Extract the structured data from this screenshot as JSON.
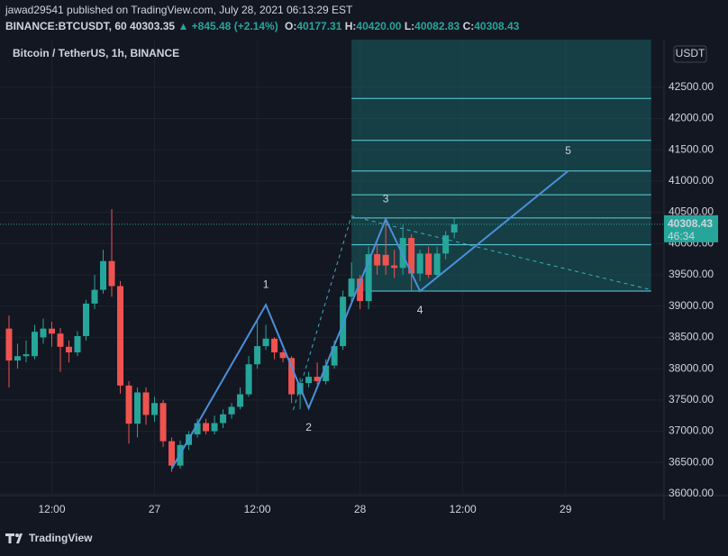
{
  "header": {
    "publisher": "jawad29541 published on TradingView.com, July 28, 2021 06:13:29 EST",
    "symbol": "BINANCE:BTCUSDT, 60",
    "price": "40303.35",
    "change": "▲ +845.48 (+2.14%)",
    "ohlc": [
      [
        "O:",
        "40177.31"
      ],
      [
        "H:",
        "40420.00"
      ],
      [
        "L:",
        "40082.83"
      ],
      [
        "C:",
        "40308.43"
      ]
    ]
  },
  "chart_data": {
    "type": "candlestick",
    "title": "Bitcoin / TetherUS, 1h, BINANCE",
    "currency": "USDT",
    "categories": [
      null,
      null,
      null,
      null,
      null,
      null,
      null,
      null,
      null,
      null,
      null,
      null,
      null,
      null,
      null,
      null,
      null,
      null,
      null,
      null,
      null,
      null,
      null,
      null,
      null,
      null,
      null,
      null,
      null,
      null,
      null,
      null,
      null,
      null,
      null,
      null,
      null,
      null,
      null,
      null,
      null,
      null,
      null,
      null,
      null,
      null,
      null,
      null,
      null,
      null,
      null,
      null,
      null
    ],
    "candles": [
      [
        38640,
        38850,
        37700,
        38130
      ],
      [
        38130,
        38400,
        38000,
        38200
      ],
      [
        38200,
        38450,
        38100,
        38230
      ],
      [
        38200,
        38700,
        38150,
        38590
      ],
      [
        38500,
        38800,
        38400,
        38640
      ],
      [
        38640,
        38750,
        38350,
        38560
      ],
      [
        38560,
        38650,
        37950,
        38350
      ],
      [
        38350,
        38450,
        38100,
        38260
      ],
      [
        38260,
        38600,
        38200,
        38520
      ],
      [
        38520,
        39100,
        38450,
        39040
      ],
      [
        39040,
        39500,
        38950,
        39260
      ],
      [
        39260,
        39900,
        39200,
        39720
      ],
      [
        39720,
        40550,
        39150,
        39320
      ],
      [
        39320,
        39400,
        37600,
        37730
      ],
      [
        37730,
        37800,
        36800,
        37120
      ],
      [
        37120,
        37700,
        36900,
        37620
      ],
      [
        37620,
        37700,
        37100,
        37260
      ],
      [
        37260,
        37550,
        37150,
        37450
      ],
      [
        37450,
        37500,
        36750,
        36840
      ],
      [
        36840,
        36900,
        36350,
        36450
      ],
      [
        36450,
        36850,
        36400,
        36780
      ],
      [
        36780,
        37000,
        36700,
        36950
      ],
      [
        36950,
        37200,
        36900,
        37130
      ],
      [
        37130,
        37200,
        36950,
        37000
      ],
      [
        37000,
        37250,
        36950,
        37130
      ],
      [
        37130,
        37350,
        37050,
        37270
      ],
      [
        37270,
        37450,
        37200,
        37390
      ],
      [
        37390,
        37700,
        37350,
        37590
      ],
      [
        37590,
        38200,
        37550,
        38070
      ],
      [
        38070,
        38800,
        38000,
        38360
      ],
      [
        38360,
        38700,
        38300,
        38480
      ],
      [
        38480,
        38500,
        38150,
        38260
      ],
      [
        38260,
        38300,
        38100,
        38170
      ],
      [
        38170,
        38200,
        37450,
        37590
      ],
      [
        37590,
        37850,
        37350,
        37770
      ],
      [
        37770,
        37950,
        37700,
        37870
      ],
      [
        37870,
        38100,
        37750,
        37800
      ],
      [
        37800,
        38150,
        37750,
        38050
      ],
      [
        38050,
        38450,
        38000,
        38360
      ],
      [
        38360,
        39250,
        38300,
        39150
      ],
      [
        39150,
        39700,
        39050,
        39440
      ],
      [
        39440,
        39500,
        38950,
        39080
      ],
      [
        39080,
        39950,
        38950,
        39830
      ],
      [
        39830,
        40000,
        39500,
        39650
      ],
      [
        39820,
        40420,
        39500,
        39650
      ],
      [
        39650,
        39900,
        39450,
        39610
      ],
      [
        39610,
        40300,
        39500,
        40090
      ],
      [
        40090,
        40150,
        39250,
        39520
      ],
      [
        39520,
        39900,
        39400,
        39840
      ],
      [
        39840,
        39950,
        39450,
        39500
      ],
      [
        39500,
        39950,
        39450,
        39840
      ],
      [
        39840,
        40200,
        39750,
        40130
      ],
      [
        40177.31,
        40420,
        40082.83,
        40308.43
      ]
    ],
    "up_color": "#26a69a",
    "down_color": "#ef5350",
    "xlim": [
      -1.05,
      76.5
    ],
    "xticks": [
      {
        "value": 5,
        "label": "12:00"
      },
      {
        "value": 17,
        "label": "27"
      },
      {
        "value": 29,
        "label": "12:00"
      },
      {
        "value": 41,
        "label": "28"
      },
      {
        "value": 53,
        "label": "12:00"
      },
      {
        "value": 65,
        "label": "29"
      }
    ],
    "ylim": [
      35970,
      43260
    ],
    "yticks": [
      {
        "value": 36000,
        "label": "36000.00"
      },
      {
        "value": 36500,
        "label": "36500.00"
      },
      {
        "value": 37000,
        "label": "37000.00"
      },
      {
        "value": 37500,
        "label": "37500.00"
      },
      {
        "value": 38000,
        "label": "38000.00"
      },
      {
        "value": 38500,
        "label": "38500.00"
      },
      {
        "value": 39000,
        "label": "39000.00"
      },
      {
        "value": 39500,
        "label": "39500.00"
      },
      {
        "value": 40000,
        "label": "40000.00"
      },
      {
        "value": 40500,
        "label": "40500.00"
      },
      {
        "value": 41000,
        "label": "41000.00"
      },
      {
        "value": 41500,
        "label": "41500.00"
      },
      {
        "value": 42000,
        "label": "42000.00"
      },
      {
        "value": 42500,
        "label": "42500.00"
      }
    ],
    "grid": true,
    "countdown": "46:34",
    "wave": {
      "x": [
        19,
        30,
        35,
        44,
        48,
        65.3
      ],
      "y": [
        36400,
        39020,
        37370,
        40390,
        39240,
        41160
      ],
      "labels": [
        null,
        "1",
        "2",
        "3",
        "4",
        "5"
      ]
    },
    "channel": {
      "x": [
        33.2,
        40,
        75
      ],
      "y": [
        37340,
        40440,
        39260
      ]
    },
    "fib": {
      "x": [
        40,
        75
      ],
      "levels": [
        39240,
        39980,
        40410,
        40780,
        41160,
        41650,
        42320
      ]
    }
  },
  "footer": "TradingView"
}
